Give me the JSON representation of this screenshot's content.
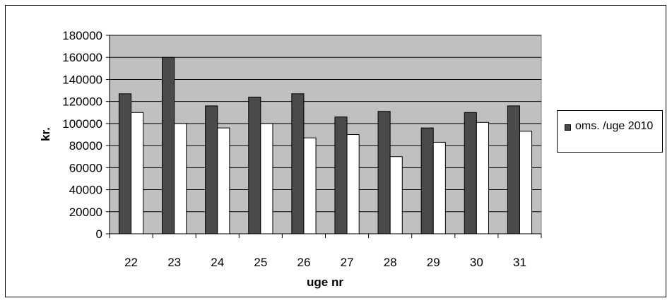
{
  "chart_data": {
    "type": "bar",
    "categories": [
      "22",
      "23",
      "24",
      "25",
      "26",
      "27",
      "28",
      "29",
      "30",
      "31"
    ],
    "series": [
      {
        "name": "oms. /uge 2010",
        "color": "#4a4a4a",
        "values": [
          127000,
          160000,
          116000,
          124000,
          127000,
          106000,
          111000,
          96000,
          110000,
          116000
        ]
      },
      {
        "color": "#ffffff",
        "values": [
          110000,
          100000,
          96000,
          100000,
          87000,
          90000,
          70000,
          83000,
          101000,
          93000
        ]
      }
    ],
    "ylim": [
      0,
      180000
    ],
    "yticks": [
      "0",
      "20000",
      "40000",
      "60000",
      "80000",
      "100000",
      "120000",
      "140000",
      "160000",
      "180000"
    ],
    "xlabel": "uge nr",
    "ylabel": "kr.",
    "grid": true,
    "plot_background": "#c0c0c0",
    "legend_position": "right"
  },
  "legend": {
    "label": "oms. /uge 2010"
  }
}
